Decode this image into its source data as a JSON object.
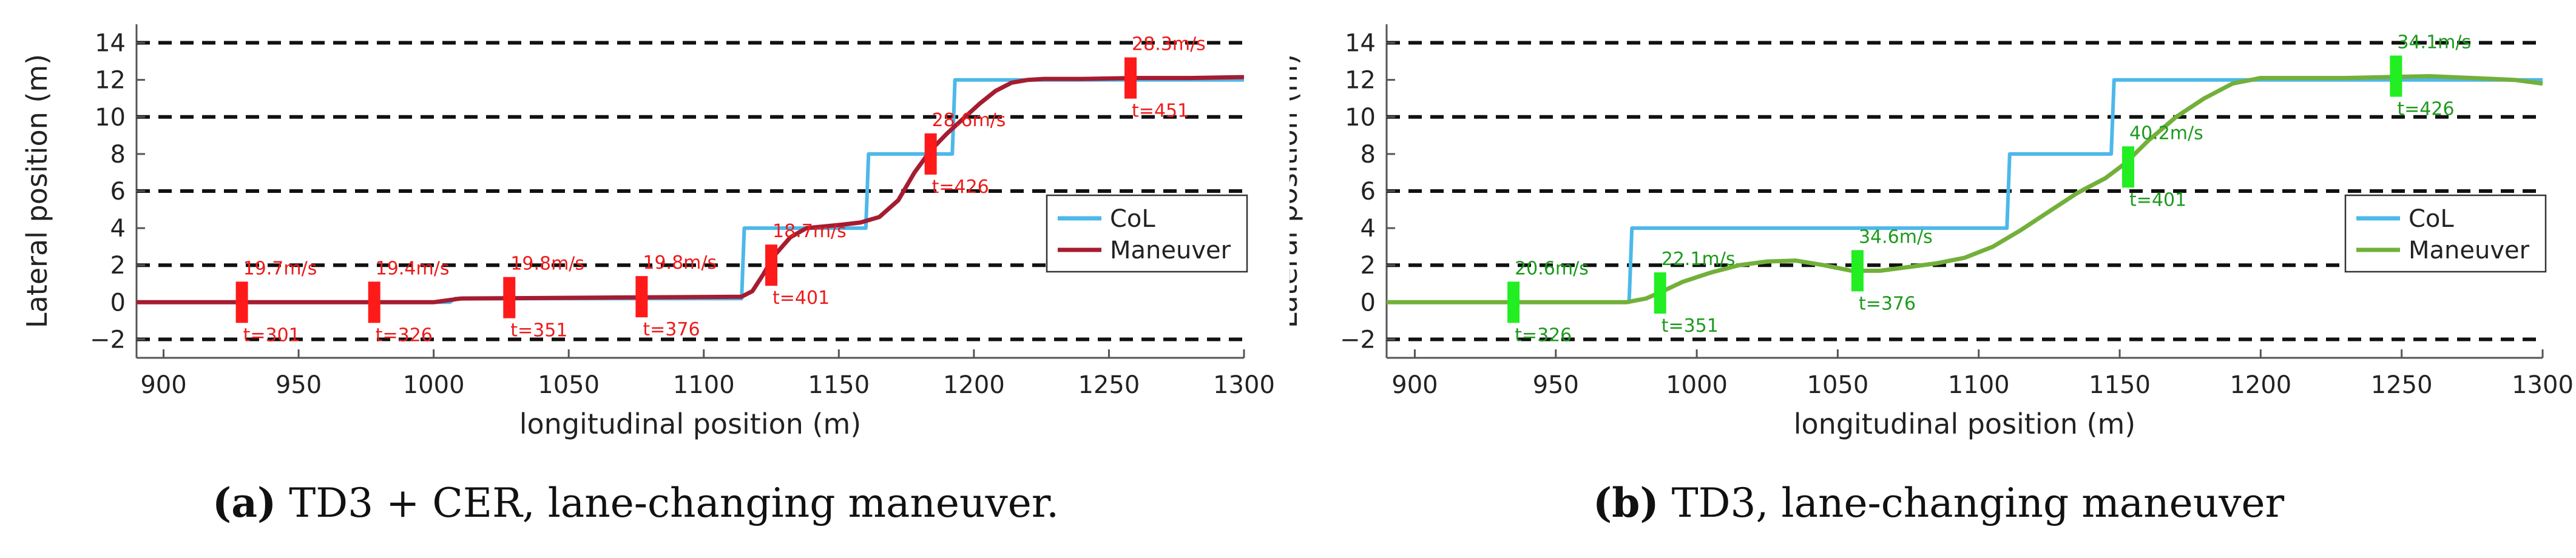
{
  "colors": {
    "col": "#4db8ea",
    "maneuver_a": "#a51c30",
    "maneuver_b": "#72b03a",
    "marker_a": "#ff1a1a",
    "marker_b": "#22ee22",
    "label_a": "#ee1a1a",
    "label_b": "#1c9a1c"
  },
  "chart_data": [
    {
      "type": "line",
      "panel": "a",
      "caption": {
        "tag": "(a)",
        "text": "TD3 + CER, lane-changing maneuver."
      },
      "xlabel": "longitudinal position (m)",
      "ylabel": "Lateral position (m)",
      "xlim": [
        890,
        1300
      ],
      "ylim": [
        -3,
        15
      ],
      "xticks": [
        "900",
        "950",
        "1000",
        "1050",
        "1100",
        "1150",
        "1200",
        "1250",
        "1300"
      ],
      "yticks": [
        "−2",
        "0",
        "2",
        "4",
        "6",
        "8",
        "10",
        "12",
        "14"
      ],
      "lane_lines": [
        -2,
        2,
        6,
        10,
        14
      ],
      "legend": {
        "position": "right",
        "entries": [
          "CoL",
          "Maneuver"
        ]
      },
      "series": [
        {
          "name": "CoL",
          "color_key": "col",
          "x": [
            890,
            1006,
            1008,
            1114,
            1115,
            1160,
            1161,
            1192,
            1193,
            1300
          ],
          "y": [
            0,
            0,
            0.2,
            0.2,
            4,
            4,
            8,
            8,
            12,
            12
          ]
        },
        {
          "name": "Maneuver",
          "color_key": "maneuver_a",
          "x": [
            890,
            1000,
            1010,
            1114,
            1118,
            1122,
            1126,
            1132,
            1138,
            1145,
            1152,
            1158,
            1165,
            1172,
            1178,
            1184,
            1190,
            1196,
            1202,
            1208,
            1214,
            1220,
            1226,
            1232,
            1240,
            1260,
            1280,
            1300
          ],
          "y": [
            0,
            0,
            0.2,
            0.3,
            0.6,
            1.5,
            2.5,
            3.5,
            4.0,
            4.1,
            4.2,
            4.3,
            4.6,
            5.5,
            7.0,
            8.2,
            9.1,
            9.9,
            10.7,
            11.4,
            11.85,
            12.0,
            12.05,
            12.05,
            12.05,
            12.1,
            12.1,
            12.15
          ]
        }
      ],
      "annotations": [
        {
          "x": 929,
          "y": 0,
          "speed": "19.7m/s",
          "time": "t=301"
        },
        {
          "x": 978,
          "y": 0,
          "speed": "19.4m/s",
          "time": "t=326"
        },
        {
          "x": 1028,
          "y": 0.25,
          "speed": "19.8m/s",
          "time": "t=351"
        },
        {
          "x": 1077,
          "y": 0.3,
          "speed": "19.8m/s",
          "time": "t=376"
        },
        {
          "x": 1125,
          "y": 2.0,
          "speed": "18.7m/s",
          "time": "t=401"
        },
        {
          "x": 1184,
          "y": 8.0,
          "speed": "28.6m/s",
          "time": "t=426"
        },
        {
          "x": 1258,
          "y": 12.1,
          "speed": "28.3m/s",
          "time": "t=451"
        }
      ]
    },
    {
      "type": "line",
      "panel": "b",
      "caption": {
        "tag": "(b)",
        "text": "TD3, lane-changing maneuver"
      },
      "xlabel": "longitudinal position (m)",
      "ylabel": "Lateral position (m)",
      "xlim": [
        890,
        1300
      ],
      "ylim": [
        -3,
        15
      ],
      "xticks": [
        "900",
        "950",
        "1000",
        "1050",
        "1100",
        "1150",
        "1200",
        "1250",
        "1300"
      ],
      "yticks": [
        "−2",
        "0",
        "2",
        "4",
        "6",
        "8",
        "10",
        "12",
        "14"
      ],
      "lane_lines": [
        -2,
        2,
        6,
        10,
        14
      ],
      "legend": {
        "position": "right",
        "entries": [
          "CoL",
          "Maneuver"
        ]
      },
      "series": [
        {
          "name": "CoL",
          "color_key": "col",
          "x": [
            890,
            976,
            977,
            1110,
            1111,
            1147,
            1148,
            1300
          ],
          "y": [
            0,
            0,
            4,
            4,
            8,
            8,
            12,
            12
          ]
        },
        {
          "name": "Maneuver",
          "color_key": "maneuver_b",
          "x": [
            890,
            975,
            982,
            988,
            995,
            1005,
            1015,
            1025,
            1035,
            1045,
            1055,
            1065,
            1075,
            1085,
            1095,
            1105,
            1115,
            1125,
            1135,
            1145,
            1152,
            1160,
            1170,
            1180,
            1190,
            1200,
            1215,
            1230,
            1245,
            1260,
            1275,
            1290,
            1300
          ],
          "y": [
            0,
            0,
            0.2,
            0.6,
            1.1,
            1.6,
            2.0,
            2.2,
            2.25,
            2.0,
            1.7,
            1.7,
            1.9,
            2.1,
            2.4,
            3.0,
            3.9,
            4.9,
            5.9,
            6.7,
            7.5,
            8.7,
            10.0,
            11.0,
            11.8,
            12.1,
            12.1,
            12.1,
            12.15,
            12.2,
            12.1,
            12.0,
            11.8
          ]
        }
      ],
      "annotations": [
        {
          "x": 935,
          "y": 0,
          "speed": "20.6m/s",
          "time": "t=326"
        },
        {
          "x": 987,
          "y": 0.5,
          "speed": "22.1m/s",
          "time": "t=351"
        },
        {
          "x": 1057,
          "y": 1.7,
          "speed": "34.6m/s",
          "time": "t=376"
        },
        {
          "x": 1153,
          "y": 7.3,
          "speed": "40.2m/s",
          "time": "t=401"
        },
        {
          "x": 1248,
          "y": 12.2,
          "speed": "34.1m/s",
          "time": "t=426"
        }
      ]
    }
  ]
}
